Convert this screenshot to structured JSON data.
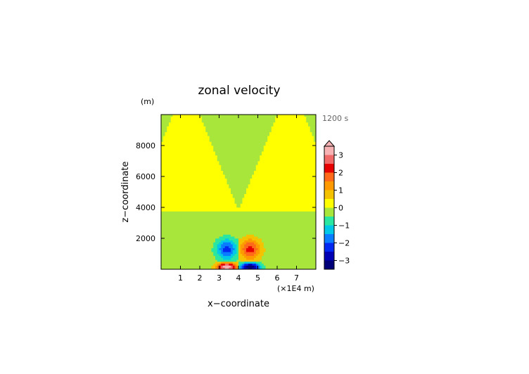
{
  "chart_data": {
    "type": "heatmap",
    "title": "zonal velocity",
    "xlabel": "x−coordinate",
    "ylabel": "z−coordinate",
    "y_unit_label": "(m)",
    "x_unit_label": "(×1E4 m)",
    "time_label": "1200 s",
    "xlim": [
      0,
      8
    ],
    "ylim": [
      0,
      10000
    ],
    "x_ticks": [
      {
        "value": 1,
        "label": "1"
      },
      {
        "value": 2,
        "label": "2"
      },
      {
        "value": 3,
        "label": "3"
      },
      {
        "value": 4,
        "label": "4"
      },
      {
        "value": 5,
        "label": "5"
      },
      {
        "value": 6,
        "label": "6"
      },
      {
        "value": 7,
        "label": "7"
      }
    ],
    "y_ticks": [
      {
        "value": 2000,
        "label": "2000"
      },
      {
        "value": 4000,
        "label": "4000"
      },
      {
        "value": 6000,
        "label": "6000"
      },
      {
        "value": 8000,
        "label": "8000"
      }
    ],
    "colorbar": {
      "min": -3.5,
      "max": 3.5,
      "extend_max": true,
      "ticks": [
        {
          "value": 3,
          "label": "3"
        },
        {
          "value": 2,
          "label": "2"
        },
        {
          "value": 1,
          "label": "1"
        },
        {
          "value": 0,
          "label": "0"
        },
        {
          "value": -1,
          "label": "−1"
        },
        {
          "value": -2,
          "label": "−2"
        },
        {
          "value": -3,
          "label": "−3"
        }
      ],
      "levels": [
        {
          "from": 3.0,
          "to": 3.5,
          "color": "#f7b3b3"
        },
        {
          "from": 2.5,
          "to": 3.0,
          "color": "#f06a6a"
        },
        {
          "from": 2.0,
          "to": 2.5,
          "color": "#e60000"
        },
        {
          "from": 1.5,
          "to": 2.0,
          "color": "#ff6a1a"
        },
        {
          "from": 1.0,
          "to": 1.5,
          "color": "#ff9900"
        },
        {
          "from": 0.5,
          "to": 1.0,
          "color": "#f5c200"
        },
        {
          "from": 0.0,
          "to": 0.5,
          "color": "#ffff00"
        },
        {
          "from": -0.5,
          "to": 0.0,
          "color": "#a8e63c"
        },
        {
          "from": -1.0,
          "to": -0.5,
          "color": "#2be6a0"
        },
        {
          "from": -1.5,
          "to": -1.0,
          "color": "#00c8e6"
        },
        {
          "from": -2.0,
          "to": -1.5,
          "color": "#0a7cff"
        },
        {
          "from": -2.5,
          "to": -2.0,
          "color": "#0028f0"
        },
        {
          "from": -3.0,
          "to": -2.5,
          "color": "#0000b4"
        },
        {
          "from": -3.5,
          "to": -3.0,
          "color": "#000078"
        }
      ]
    },
    "field": {
      "background": -0.25,
      "features": [
        {
          "shape": "plume",
          "center_x": 1.3,
          "z_start": 3800,
          "value": 0.25
        },
        {
          "shape": "plume",
          "center_x": 6.7,
          "z_start": 3800,
          "value": 0.25
        },
        {
          "shape": "blob",
          "x": 3.4,
          "z": 1300,
          "rx": 0.65,
          "rz": 800,
          "value": -2.0
        },
        {
          "shape": "blob",
          "x": 4.6,
          "z": 1300,
          "rx": 0.65,
          "rz": 800,
          "value": 2.0
        },
        {
          "shape": "blob",
          "x": 3.4,
          "z": 150,
          "rx": 0.6,
          "rz": 350,
          "value": 3.3
        },
        {
          "shape": "blob",
          "x": 4.6,
          "z": 150,
          "rx": 0.6,
          "rz": 350,
          "value": -3.3
        }
      ]
    }
  }
}
